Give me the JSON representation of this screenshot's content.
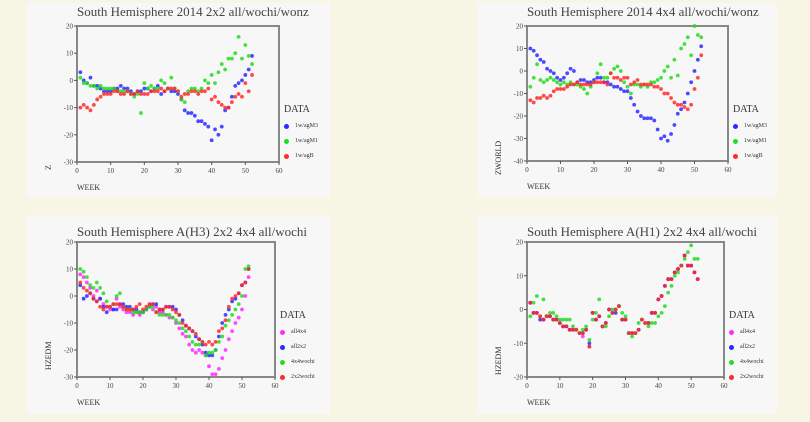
{
  "chart_data": [
    {
      "type": "scatter",
      "title": "South Hemisphere 2014 2x2 all/wochi/wonz",
      "xlabel": "WEEK",
      "ylabel": "Z",
      "xlim": [
        0,
        60
      ],
      "ylim": [
        -30,
        20
      ],
      "xticks": [
        0,
        10,
        20,
        30,
        40,
        50,
        60
      ],
      "yticks": [
        20,
        10,
        0,
        -10,
        -20,
        -30
      ],
      "legend_title": "DATA",
      "legend": "right",
      "series": [
        {
          "name": "1w/agM3",
          "color": "#2a2aff",
          "values": [
            3,
            0,
            -1,
            1,
            -2,
            -2,
            -3,
            -4,
            -4,
            -4,
            -3,
            -3,
            -2,
            -3,
            -3,
            -4,
            -5,
            -4,
            -4,
            -3,
            -3,
            -4,
            -3,
            -2,
            -5,
            -4,
            -3,
            -4,
            -4,
            -5,
            -7,
            -11,
            -12,
            -12,
            -13,
            -15,
            -15,
            -16,
            -17,
            -22,
            -18,
            -20,
            -17,
            -11,
            -10,
            -6,
            -2,
            -1,
            0,
            2,
            4,
            9
          ]
        },
        {
          "name": "1w/agM1",
          "color": "#22dd22",
          "values": [
            1,
            -1,
            -1,
            -2,
            -2,
            -3,
            -2,
            -3,
            -3,
            -3,
            -3,
            -4,
            -4,
            -4,
            -4,
            -5,
            -6,
            -5,
            -12,
            -1,
            -3,
            -2,
            -3,
            -3,
            0,
            -1,
            -3,
            1,
            -3,
            -4,
            -7,
            -8,
            -4,
            -3,
            -3,
            -4,
            -3,
            0,
            -1,
            2,
            -1,
            3,
            6,
            4,
            8,
            8,
            10,
            16,
            8,
            13,
            9,
            6
          ]
        },
        {
          "name": "1w/agB",
          "color": "#ff2a2a",
          "values": [
            -10,
            -9,
            -10,
            -11,
            -9,
            -7,
            -6,
            -5,
            -5,
            -5,
            -4,
            -4,
            -5,
            -5,
            -4,
            -5,
            -5,
            -4,
            -5,
            -5,
            -5,
            -4,
            -4,
            -4,
            -3,
            -4,
            -3,
            -3,
            -3,
            -4,
            -6,
            -5,
            -5,
            -4,
            -4,
            -5,
            -4,
            -4,
            -3,
            -7,
            -6,
            -8,
            -9,
            -10,
            -10,
            -8,
            -6,
            -5,
            -6,
            -1,
            -4,
            2
          ]
        }
      ]
    },
    {
      "type": "scatter",
      "title": "South Hemisphere 2014 4x4 all/wochi/wonz",
      "xlabel": "WEEK",
      "ylabel": "ZWORLD",
      "xlim": [
        0,
        60
      ],
      "ylim": [
        -40,
        20
      ],
      "xticks": [
        0,
        10,
        20,
        30,
        40,
        50,
        60
      ],
      "yticks": [
        20,
        10,
        0,
        -10,
        -20,
        -30,
        -40
      ],
      "legend_title": "DATA",
      "legend": "right",
      "series": [
        {
          "name": "1w/agM3",
          "color": "#2a2aff",
          "values": [
            10,
            9,
            7,
            5,
            4,
            1,
            0,
            -1,
            -3,
            -4,
            -3,
            -1,
            1,
            0,
            -5,
            -4,
            -4,
            -5,
            -5,
            -4,
            -3,
            -3,
            -5,
            -5,
            -6,
            -7,
            -7,
            -8,
            -9,
            -9,
            -12,
            -15,
            -18,
            -20,
            -21,
            -21,
            -21,
            -22,
            -26,
            -30,
            -29,
            -31,
            -28,
            -24,
            -19,
            -17,
            -14,
            -10,
            -5,
            0,
            5,
            11
          ]
        },
        {
          "name": "1w/agM1",
          "color": "#22dd22",
          "values": [
            -7,
            -3,
            3,
            -4,
            -5,
            -4,
            -3,
            -4,
            -5,
            -6,
            -5,
            -6,
            -5,
            -6,
            -6,
            -7,
            -8,
            -10,
            -7,
            -5,
            -1,
            3,
            -3,
            -3,
            -1,
            1,
            2,
            0,
            -5,
            -7,
            -10,
            -6,
            -6,
            -7,
            -6,
            -7,
            -5,
            -5,
            -4,
            -3,
            0,
            2,
            -3,
            5,
            -2,
            10,
            12,
            15,
            7,
            20,
            16,
            15
          ]
        },
        {
          "name": "1w/agB",
          "color": "#ff2a2a",
          "values": [
            -13,
            -14,
            -12,
            -12,
            -11,
            -12,
            -11,
            -9,
            -8,
            -8,
            -8,
            -7,
            -6,
            -6,
            -5,
            -6,
            -6,
            -6,
            -6,
            -5,
            -5,
            -5,
            -5,
            -6,
            -1,
            -3,
            -3,
            -4,
            -3,
            -3,
            -6,
            -5,
            -4,
            -6,
            -6,
            -6,
            -6,
            -7,
            -7,
            -8,
            -10,
            -10,
            -12,
            -14,
            -15,
            -15,
            -16,
            -17,
            -15,
            -8,
            -3,
            7
          ]
        }
      ]
    },
    {
      "type": "scatter",
      "title": "South Hemisphere A(H3) 2x2 4x4 all/wochi",
      "xlabel": "WEEK",
      "ylabel": "HZEDM",
      "xlim": [
        0,
        60
      ],
      "ylim": [
        -30,
        20
      ],
      "xticks": [
        0,
        10,
        20,
        30,
        40,
        50,
        60
      ],
      "yticks": [
        20,
        10,
        0,
        -10,
        -20,
        -30
      ],
      "legend_title": "DATA",
      "legend": "right",
      "series": [
        {
          "name": "all4x4",
          "color": "#ff2aff",
          "values": [
            8,
            7,
            5,
            3,
            0,
            2,
            -1,
            -3,
            -4,
            -5,
            -5,
            -1,
            -4,
            -5,
            -6,
            -6,
            -7,
            -6,
            -7,
            -6,
            -5,
            -3,
            -5,
            -4,
            -6,
            -6,
            -7,
            -8,
            -8,
            -10,
            -12,
            -14,
            -15,
            -18,
            -20,
            -21,
            -20,
            -21,
            -22,
            -26,
            -29,
            -29,
            -27,
            -23,
            -20,
            -16,
            -13,
            -10,
            -8,
            -5,
            0,
            7
          ]
        },
        {
          "name": "all2x2",
          "color": "#2a2aff",
          "values": [
            4,
            -1,
            0,
            1,
            -1,
            -2,
            -1,
            -4,
            -6,
            -4,
            -5,
            -5,
            -3,
            -3,
            -4,
            -4,
            -5,
            -5,
            -6,
            -6,
            -5,
            -4,
            -3,
            -3,
            -5,
            -5,
            -4,
            -4,
            -4,
            -5,
            -7,
            -9,
            -11,
            -12,
            -13,
            -15,
            -16,
            -18,
            -21,
            -22,
            -22,
            -20,
            -15,
            -10,
            -7,
            -5,
            -2,
            -1,
            1,
            4,
            5,
            10
          ]
        },
        {
          "name": "4x4wochi",
          "color": "#22dd22",
          "values": [
            10,
            9,
            7,
            4,
            3,
            5,
            3,
            1,
            -2,
            -4,
            -3,
            0,
            1,
            -4,
            -5,
            -5,
            -6,
            -6,
            -6,
            -6,
            -5,
            -4,
            -4,
            -6,
            -7,
            -7,
            -7,
            -7,
            -8,
            -9,
            -10,
            -12,
            -13,
            -15,
            -17,
            -18,
            -18,
            -17,
            -22,
            -21,
            -21,
            -20,
            -17,
            -15,
            -11,
            -9,
            -7,
            -5,
            -3,
            0,
            10,
            11
          ]
        },
        {
          "name": "2x2wochi",
          "color": "#ff2a2a",
          "values": [
            5,
            3,
            2,
            1,
            -1,
            -2,
            -4,
            -5,
            -4,
            -4,
            -3,
            -3,
            -3,
            -4,
            -5,
            -5,
            -5,
            -4,
            -3,
            -5,
            -4,
            -3,
            -3,
            -6,
            -5,
            -5,
            -4,
            -4,
            -5,
            -6,
            -7,
            -10,
            -11,
            -12,
            -13,
            -14,
            -16,
            -17,
            -18,
            -17,
            -18,
            -17,
            -13,
            -12,
            -9,
            -4,
            -1,
            0,
            1,
            4,
            5,
            10
          ]
        }
      ]
    },
    {
      "type": "scatter",
      "title": "South Hemisphere A(H1) 2x2 4x4 all/wochi",
      "xlabel": "WEEK",
      "ylabel": "HZEDM",
      "xlim": [
        0,
        60
      ],
      "ylim": [
        -20,
        20
      ],
      "xticks": [
        0,
        10,
        20,
        30,
        40,
        50,
        60
      ],
      "yticks": [
        20,
        10,
        0,
        -10,
        -20
      ],
      "legend_title": "DATA",
      "legend": "right",
      "series": [
        {
          "name": "all4x4",
          "color": "#ff2aff",
          "values": [
            2,
            -1,
            -1,
            -2,
            -3,
            -2,
            -2,
            -3,
            -3,
            -4,
            -5,
            -5,
            -6,
            -6,
            -6,
            -7,
            -8,
            -6,
            -11,
            -1,
            -3,
            -2,
            -5,
            -4,
            0,
            -1,
            0,
            1,
            -3,
            -3,
            -7,
            -7,
            -7,
            -6,
            -3,
            -4,
            -4,
            -1,
            -1,
            3,
            4,
            7,
            9,
            9,
            11,
            12,
            13,
            16,
            13,
            13,
            11,
            9
          ]
        },
        {
          "name": "all2x2",
          "color": "#2a2aff",
          "values": [
            2,
            -1,
            -1,
            -3,
            -3,
            -2,
            -2,
            -3,
            -3,
            -4,
            -5,
            -5,
            -6,
            -6,
            -6,
            -7,
            -7,
            -6,
            -10,
            -1,
            -3,
            -2,
            -5,
            -4,
            0,
            -1,
            -1,
            1,
            -3,
            -3,
            -7,
            -7,
            -7,
            -6,
            -3,
            -4,
            -4,
            -1,
            -1,
            3,
            4,
            7,
            9,
            9,
            11,
            12,
            13,
            16,
            13,
            13,
            11,
            9
          ]
        },
        {
          "name": "4x4wochi",
          "color": "#22dd22",
          "values": [
            -2,
            2,
            4,
            -2,
            3,
            -2,
            -1,
            -1,
            -2,
            -3,
            -3,
            -3,
            -3,
            -5,
            -6,
            -7,
            -6,
            -5,
            -9,
            -3,
            -1,
            3,
            -5,
            -5,
            -2,
            0,
            0,
            1,
            -1,
            -2,
            -7,
            -8,
            -7,
            -4,
            -3,
            -4,
            -5,
            -4,
            -4,
            -2,
            -1,
            1,
            5,
            7,
            10,
            11,
            13,
            15,
            17,
            19,
            15,
            15
          ]
        },
        {
          "name": "2x2wochi",
          "color": "#ff2a2a",
          "values": [
            2,
            -1,
            -1,
            -2,
            -3,
            -2,
            -2,
            -3,
            -3,
            -4,
            -5,
            -5,
            -6,
            -6,
            -6,
            -7,
            -7,
            -6,
            -11,
            -1,
            -3,
            -2,
            -5,
            -4,
            0,
            -1,
            0,
            1,
            -3,
            -3,
            -7,
            -7,
            -7,
            -6,
            -3,
            -4,
            -4,
            -1,
            -1,
            3,
            4,
            7,
            9,
            9,
            11,
            12,
            13,
            16,
            13,
            13,
            11,
            9
          ]
        }
      ]
    }
  ]
}
